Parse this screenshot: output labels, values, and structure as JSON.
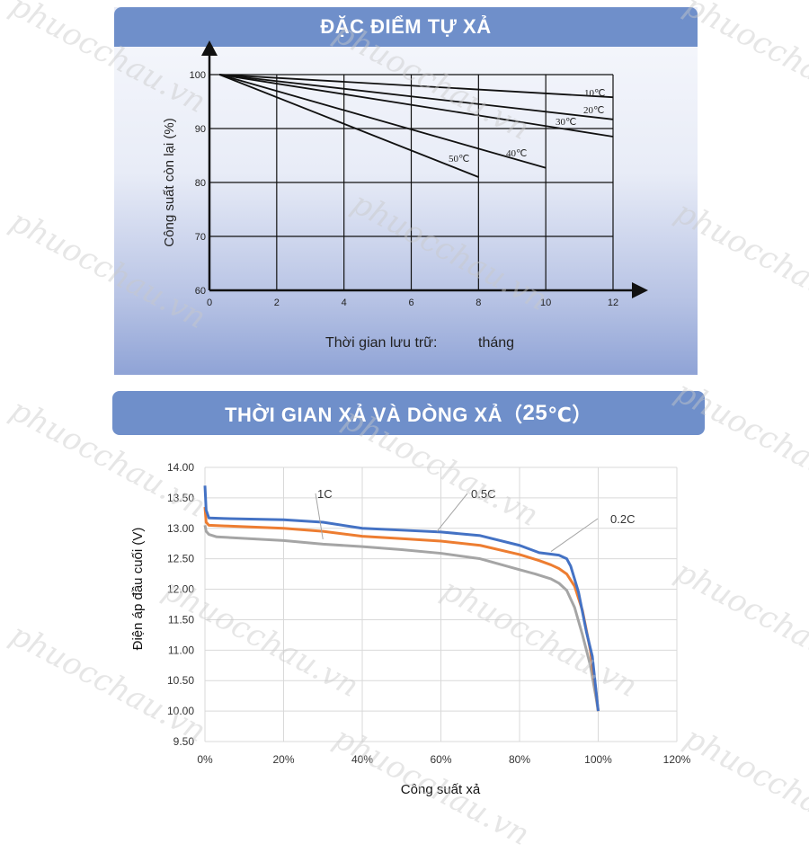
{
  "watermark": "phuocchau.vn",
  "charts": {
    "top": {
      "title": "ĐẶC ĐIỂM TỰ XẢ",
      "ylabel": "Công suất còn lại (%)",
      "xlabel_text": "Thời gian lưu trữ:",
      "xlabel_unit": "tháng"
    },
    "bottom": {
      "title": "THỜI GIAN XẢ VÀ DÒNG XẢ（",
      "title_temp": "25",
      "title_end": "℃）",
      "ylabel": "Điện áp đầu cuối (V)",
      "xlabel": "Công suất xả"
    }
  },
  "chart_data": [
    {
      "type": "line",
      "title": "ĐẶC ĐIỂM TỰ XẢ",
      "xlabel": "Thời gian lưu trữ: tháng",
      "ylabel": "Công suất còn lại (%)",
      "xlim": [
        0,
        12
      ],
      "ylim": [
        60,
        100
      ],
      "xticks": [
        "0",
        "2",
        "4",
        "6",
        "8",
        "10",
        "12"
      ],
      "yticks": [
        "60",
        "70",
        "80",
        "90",
        "100"
      ],
      "grid": true,
      "series": [
        {
          "name": "10℃",
          "x": [
            0.3,
            12
          ],
          "y": [
            100,
            95.8
          ]
        },
        {
          "name": "20℃",
          "x": [
            0.3,
            12
          ],
          "y": [
            100,
            91.7
          ]
        },
        {
          "name": "30℃",
          "x": [
            0.3,
            12
          ],
          "y": [
            100,
            88.5
          ]
        },
        {
          "name": "40℃",
          "x": [
            0.3,
            10
          ],
          "y": [
            100,
            82.7
          ]
        },
        {
          "name": "50℃",
          "x": [
            0.3,
            8
          ],
          "y": [
            100,
            81
          ]
        }
      ]
    },
    {
      "type": "line",
      "title": "THỜI GIAN XẢ VÀ DÒNG XẢ（25℃）",
      "xlabel": "Công suất xả",
      "ylabel": "Điện áp đầu cuối (V)",
      "xlim": [
        0,
        120
      ],
      "ylim": [
        9.5,
        14
      ],
      "xticks": [
        "0%",
        "20%",
        "40%",
        "60%",
        "80%",
        "100%",
        "120%"
      ],
      "yticks": [
        "9.50",
        "10.00",
        "10.50",
        "11.00",
        "11.50",
        "12.00",
        "12.50",
        "13.00",
        "13.50",
        "14.00"
      ],
      "grid": true,
      "series": [
        {
          "name": "0.2C",
          "color": "#4472c4",
          "x": [
            0,
            0.3,
            1,
            5,
            20,
            30,
            40,
            50,
            60,
            70,
            80,
            85,
            90,
            92,
            93,
            95,
            97,
            98.5,
            99.5,
            100
          ],
          "y": [
            13.7,
            13.3,
            13.17,
            13.16,
            13.14,
            13.1,
            13.0,
            12.97,
            12.94,
            12.88,
            12.72,
            12.6,
            12.56,
            12.5,
            12.38,
            11.95,
            11.3,
            10.9,
            10.3,
            10.0
          ]
        },
        {
          "name": "0.5C",
          "color": "#ed7d31",
          "x": [
            0,
            0.3,
            1,
            5,
            20,
            30,
            40,
            50,
            60,
            70,
            80,
            85,
            88,
            90,
            92,
            94,
            96,
            98,
            99.3,
            100
          ],
          "y": [
            13.35,
            13.1,
            13.05,
            13.04,
            13.0,
            12.95,
            12.87,
            12.83,
            12.79,
            12.72,
            12.57,
            12.47,
            12.4,
            12.34,
            12.25,
            12.05,
            11.65,
            11.0,
            10.4,
            10.0
          ]
        },
        {
          "name": "1C",
          "color": "#a5a5a5",
          "x": [
            0,
            0.3,
            1,
            3,
            20,
            30,
            40,
            50,
            60,
            70,
            80,
            84,
            88,
            90,
            92,
            94,
            96,
            98,
            99.5,
            100
          ],
          "y": [
            13.05,
            12.95,
            12.9,
            12.86,
            12.8,
            12.74,
            12.7,
            12.65,
            12.59,
            12.5,
            12.32,
            12.25,
            12.17,
            12.1,
            11.98,
            11.7,
            11.25,
            10.75,
            10.2,
            10.0
          ]
        }
      ]
    }
  ]
}
